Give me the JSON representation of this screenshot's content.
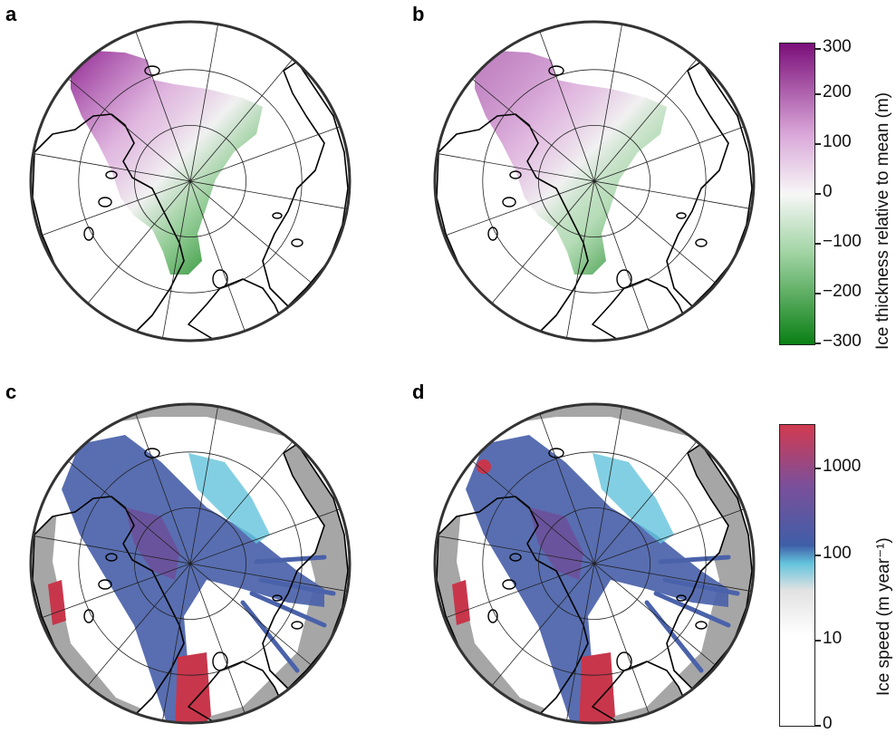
{
  "panels": [
    {
      "id": "a",
      "letter": "a",
      "type": "thickness",
      "ratio": 1.0
    },
    {
      "id": "b",
      "letter": "b",
      "type": "thickness",
      "ratio": 0.55
    },
    {
      "id": "c",
      "letter": "c",
      "type": "speed",
      "variant": 1
    },
    {
      "id": "d",
      "letter": "d",
      "type": "speed",
      "variant": 2
    }
  ],
  "colorbar_thickness": {
    "title": "Ice thickness relative to mean (m)",
    "ticks": [
      "300",
      "200",
      "100",
      "0",
      "−100",
      "−200",
      "−300"
    ],
    "range": [
      -300,
      300
    ],
    "colors": {
      "high": "#7b0f7a",
      "mid": "#f7f7f7",
      "low": "#0a7f14"
    }
  },
  "colorbar_speed": {
    "title": "Ice speed (m year⁻¹)",
    "ticks": [
      "1000",
      "100",
      "10",
      "0"
    ],
    "colors": [
      "#ffffff",
      "#e2e2e2",
      "#63c3dc",
      "#3f5ea8",
      "#7c4f9a",
      "#d23a50"
    ]
  },
  "colors": {
    "coastline": "#000000",
    "graticule": "#222222",
    "land": "#a6a6a6",
    "green": "#0a7f14",
    "purple": "#8c1e8f"
  }
}
